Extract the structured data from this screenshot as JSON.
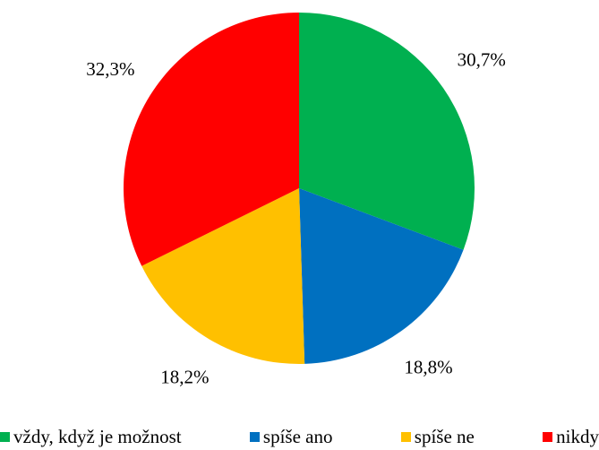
{
  "chart_data": {
    "type": "pie",
    "categories": [
      "vždy, když je možnost",
      "spíše ano",
      "spíše ne",
      "nikdy"
    ],
    "values": [
      30.7,
      18.8,
      18.2,
      32.3
    ],
    "value_labels": [
      "30,7%",
      "18,8%",
      "18,2%",
      "32,3%"
    ],
    "colors": [
      "#00b050",
      "#0070c0",
      "#ffc000",
      "#ff0000"
    ],
    "legend": "bottom"
  }
}
